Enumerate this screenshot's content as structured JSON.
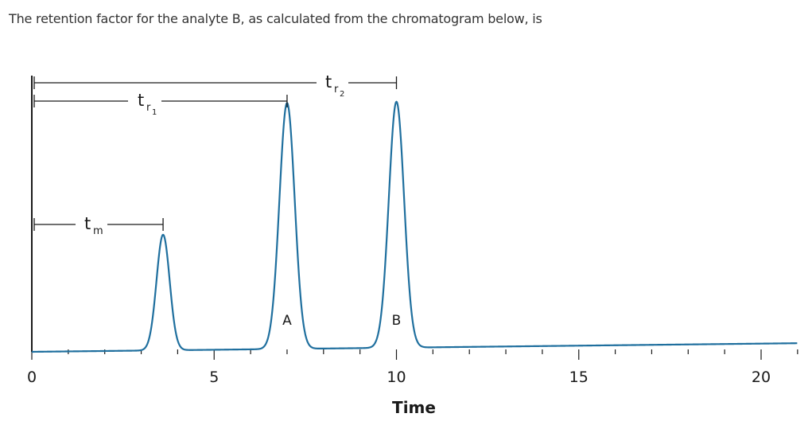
{
  "question": {
    "text": "The retention factor for the analyte B, as calculated from the chromatogram below, is"
  },
  "chart_data": {
    "type": "line",
    "xlabel": "Time",
    "ylabel": "",
    "xlim": [
      0,
      21
    ],
    "ylim": [
      0,
      1
    ],
    "x_ticks": [
      0,
      5,
      10,
      15,
      20
    ],
    "x_tick_labels": [
      "0",
      "5",
      "10",
      "15",
      "20"
    ],
    "line_color": "#1f6f9e",
    "peaks": [
      {
        "label": "",
        "time": 3.6,
        "height": 0.47,
        "width": 0.18
      },
      {
        "label": "A",
        "time": 7.0,
        "height": 1.0,
        "width": 0.21
      },
      {
        "label": "B",
        "time": 10.0,
        "height": 1.0,
        "width": 0.21
      }
    ],
    "baseline": {
      "start": 0.0,
      "end": 0.035
    },
    "annotations": [
      {
        "symbol": "t",
        "sub": "m",
        "subsub": "",
        "from": 0,
        "to": 3.6
      },
      {
        "symbol": "t",
        "sub": "r",
        "subsub": "1",
        "from": 0,
        "to": 7.0
      },
      {
        "symbol": "t",
        "sub": "r",
        "subsub": "2",
        "from": 0,
        "to": 10.0
      }
    ]
  }
}
